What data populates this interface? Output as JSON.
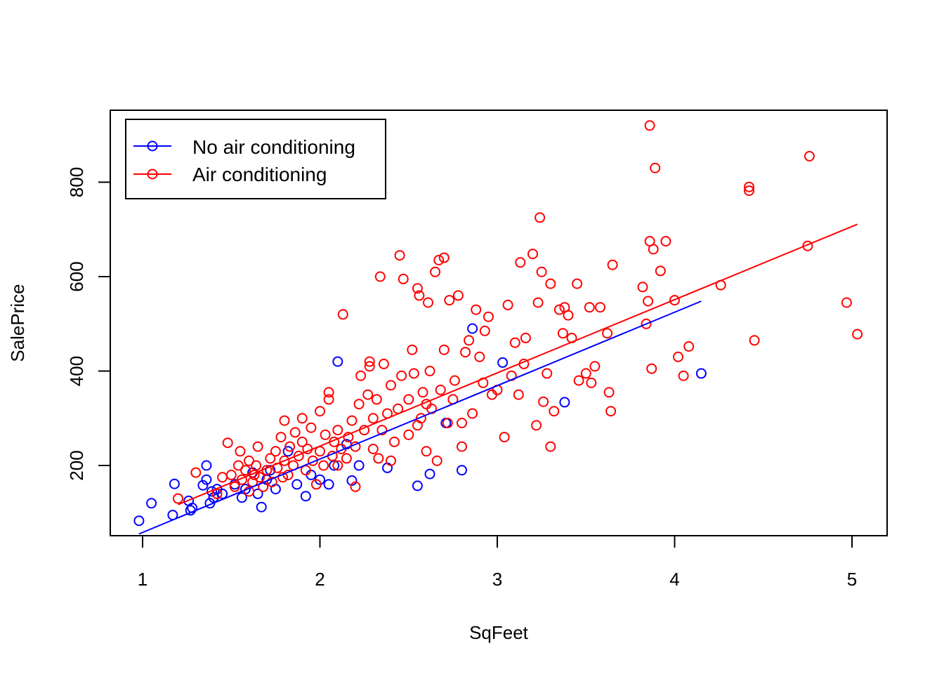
{
  "chart_data": {
    "type": "scatter",
    "title": "",
    "xlabel": "SqFeet",
    "ylabel": "SalePrice",
    "xlim": [
      0.95,
      5.15
    ],
    "ylim": [
      50,
      950
    ],
    "xticks": [
      1,
      2,
      3,
      4,
      5
    ],
    "yticks": [
      200,
      400,
      600,
      800
    ],
    "legend_position": "top-left",
    "grid": false,
    "series": [
      {
        "name": "No air conditioning",
        "color": "#0000ff",
        "fit_line": {
          "x": [
            0.98,
            4.15
          ],
          "y": [
            55,
            548
          ]
        },
        "points": [
          [
            0.98,
            83
          ],
          [
            1.05,
            120
          ],
          [
            1.17,
            95
          ],
          [
            1.18,
            161
          ],
          [
            1.26,
            125
          ],
          [
            1.27,
            105
          ],
          [
            1.28,
            110
          ],
          [
            1.34,
            158
          ],
          [
            1.36,
            200
          ],
          [
            1.36,
            170
          ],
          [
            1.38,
            120
          ],
          [
            1.39,
            145
          ],
          [
            1.4,
            132
          ],
          [
            1.42,
            150
          ],
          [
            1.45,
            140
          ],
          [
            1.52,
            160
          ],
          [
            1.56,
            132
          ],
          [
            1.58,
            150
          ],
          [
            1.62,
            185
          ],
          [
            1.65,
            140
          ],
          [
            1.67,
            112
          ],
          [
            1.7,
            170
          ],
          [
            1.72,
            190
          ],
          [
            1.75,
            150
          ],
          [
            1.82,
            230
          ],
          [
            1.87,
            160
          ],
          [
            1.92,
            135
          ],
          [
            1.95,
            180
          ],
          [
            2.0,
            170
          ],
          [
            2.05,
            160
          ],
          [
            2.08,
            200
          ],
          [
            2.1,
            420
          ],
          [
            2.15,
            245
          ],
          [
            2.18,
            168
          ],
          [
            2.22,
            200
          ],
          [
            2.38,
            195
          ],
          [
            2.55,
            157
          ],
          [
            2.62,
            182
          ],
          [
            2.71,
            290
          ],
          [
            2.8,
            190
          ],
          [
            2.86,
            490
          ],
          [
            3.03,
            418
          ],
          [
            3.38,
            334
          ],
          [
            4.15,
            395
          ]
        ]
      },
      {
        "name": "Air conditioning",
        "color": "#ff0000",
        "fit_line": {
          "x": [
            1.2,
            5.03
          ],
          "y": [
            117,
            711
          ]
        },
        "points": [
          [
            1.2,
            130
          ],
          [
            1.3,
            185
          ],
          [
            1.42,
            140
          ],
          [
            1.45,
            175
          ],
          [
            1.48,
            248
          ],
          [
            1.5,
            180
          ],
          [
            1.52,
            155
          ],
          [
            1.54,
            200
          ],
          [
            1.55,
            230
          ],
          [
            1.56,
            170
          ],
          [
            1.58,
            190
          ],
          [
            1.6,
            145
          ],
          [
            1.6,
            210
          ],
          [
            1.62,
            165
          ],
          [
            1.63,
            180
          ],
          [
            1.64,
            200
          ],
          [
            1.65,
            240
          ],
          [
            1.66,
            175
          ],
          [
            1.68,
            155
          ],
          [
            1.7,
            190
          ],
          [
            1.72,
            215
          ],
          [
            1.73,
            165
          ],
          [
            1.75,
            230
          ],
          [
            1.76,
            195
          ],
          [
            1.78,
            260
          ],
          [
            1.79,
            175
          ],
          [
            1.8,
            210
          ],
          [
            1.8,
            295
          ],
          [
            1.82,
            180
          ],
          [
            1.83,
            240
          ],
          [
            1.85,
            200
          ],
          [
            1.86,
            270
          ],
          [
            1.88,
            220
          ],
          [
            1.9,
            250
          ],
          [
            1.9,
            300
          ],
          [
            1.92,
            190
          ],
          [
            1.93,
            235
          ],
          [
            1.95,
            280
          ],
          [
            1.96,
            210
          ],
          [
            1.98,
            160
          ],
          [
            2.0,
            230
          ],
          [
            2.0,
            315
          ],
          [
            2.02,
            200
          ],
          [
            2.03,
            265
          ],
          [
            2.05,
            355
          ],
          [
            2.05,
            340
          ],
          [
            2.07,
            220
          ],
          [
            2.08,
            250
          ],
          [
            2.1,
            200
          ],
          [
            2.1,
            275
          ],
          [
            2.12,
            235
          ],
          [
            2.13,
            520
          ],
          [
            2.15,
            215
          ],
          [
            2.16,
            260
          ],
          [
            2.18,
            295
          ],
          [
            2.2,
            155
          ],
          [
            2.2,
            240
          ],
          [
            2.22,
            330
          ],
          [
            2.23,
            390
          ],
          [
            2.25,
            275
          ],
          [
            2.27,
            350
          ],
          [
            2.28,
            420
          ],
          [
            2.28,
            410
          ],
          [
            2.3,
            235
          ],
          [
            2.3,
            300
          ],
          [
            2.32,
            340
          ],
          [
            2.33,
            215
          ],
          [
            2.34,
            600
          ],
          [
            2.35,
            275
          ],
          [
            2.36,
            415
          ],
          [
            2.38,
            310
          ],
          [
            2.4,
            370
          ],
          [
            2.4,
            210
          ],
          [
            2.42,
            250
          ],
          [
            2.44,
            320
          ],
          [
            2.45,
            645
          ],
          [
            2.46,
            390
          ],
          [
            2.47,
            595
          ],
          [
            2.5,
            265
          ],
          [
            2.5,
            340
          ],
          [
            2.52,
            445
          ],
          [
            2.53,
            395
          ],
          [
            2.55,
            575
          ],
          [
            2.55,
            285
          ],
          [
            2.56,
            560
          ],
          [
            2.57,
            300
          ],
          [
            2.58,
            355
          ],
          [
            2.6,
            230
          ],
          [
            2.6,
            330
          ],
          [
            2.61,
            545
          ],
          [
            2.62,
            400
          ],
          [
            2.63,
            320
          ],
          [
            2.65,
            610
          ],
          [
            2.66,
            210
          ],
          [
            2.67,
            635
          ],
          [
            2.68,
            360
          ],
          [
            2.7,
            640
          ],
          [
            2.7,
            445
          ],
          [
            2.72,
            290
          ],
          [
            2.73,
            550
          ],
          [
            2.75,
            340
          ],
          [
            2.76,
            380
          ],
          [
            2.78,
            560
          ],
          [
            2.8,
            240
          ],
          [
            2.8,
            290
          ],
          [
            2.82,
            440
          ],
          [
            2.84,
            465
          ],
          [
            2.86,
            310
          ],
          [
            2.88,
            530
          ],
          [
            2.9,
            430
          ],
          [
            2.92,
            375
          ],
          [
            2.93,
            485
          ],
          [
            2.95,
            515
          ],
          [
            2.97,
            350
          ],
          [
            3.0,
            360
          ],
          [
            3.04,
            260
          ],
          [
            3.06,
            540
          ],
          [
            3.08,
            390
          ],
          [
            3.1,
            460
          ],
          [
            3.12,
            350
          ],
          [
            3.13,
            630
          ],
          [
            3.15,
            415
          ],
          [
            3.16,
            470
          ],
          [
            3.2,
            648
          ],
          [
            3.22,
            285
          ],
          [
            3.23,
            545
          ],
          [
            3.24,
            725
          ],
          [
            3.25,
            610
          ],
          [
            3.26,
            335
          ],
          [
            3.28,
            395
          ],
          [
            3.3,
            585
          ],
          [
            3.3,
            240
          ],
          [
            3.32,
            315
          ],
          [
            3.35,
            530
          ],
          [
            3.37,
            480
          ],
          [
            3.38,
            535
          ],
          [
            3.4,
            518
          ],
          [
            3.42,
            470
          ],
          [
            3.45,
            585
          ],
          [
            3.46,
            380
          ],
          [
            3.5,
            395
          ],
          [
            3.52,
            535
          ],
          [
            3.53,
            375
          ],
          [
            3.55,
            410
          ],
          [
            3.58,
            535
          ],
          [
            3.62,
            480
          ],
          [
            3.63,
            355
          ],
          [
            3.64,
            315
          ],
          [
            3.65,
            625
          ],
          [
            3.82,
            578
          ],
          [
            3.84,
            500
          ],
          [
            3.85,
            548
          ],
          [
            3.86,
            675
          ],
          [
            3.86,
            920
          ],
          [
            3.87,
            405
          ],
          [
            3.88,
            658
          ],
          [
            3.89,
            830
          ],
          [
            3.92,
            612
          ],
          [
            3.95,
            675
          ],
          [
            4.0,
            550
          ],
          [
            4.02,
            430
          ],
          [
            4.05,
            390
          ],
          [
            4.08,
            452
          ],
          [
            4.26,
            582
          ],
          [
            4.42,
            790
          ],
          [
            4.42,
            782
          ],
          [
            4.45,
            465
          ],
          [
            4.75,
            665
          ],
          [
            4.76,
            855
          ],
          [
            4.97,
            545
          ],
          [
            5.03,
            478
          ]
        ]
      }
    ]
  }
}
